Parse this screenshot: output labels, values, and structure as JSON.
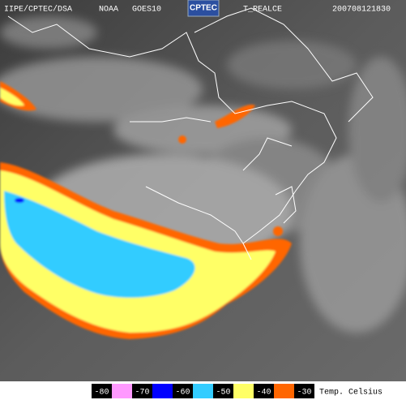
{
  "header": {
    "source": "IIPE/CPTEC/DSA",
    "agency": "NOAA",
    "satellite": "GOES10",
    "logo": "CPTEC",
    "product": "T_REALCE",
    "timestamp": "200708121830"
  },
  "legend": {
    "labels": [
      "-80",
      "-70",
      "-60",
      "-50",
      "-40",
      "-30"
    ],
    "colors": [
      "#ff99ff",
      "#0000ff",
      "#33ccff",
      "#ffff66",
      "#ff6600"
    ],
    "unit": "Temp. Celsius"
  }
}
